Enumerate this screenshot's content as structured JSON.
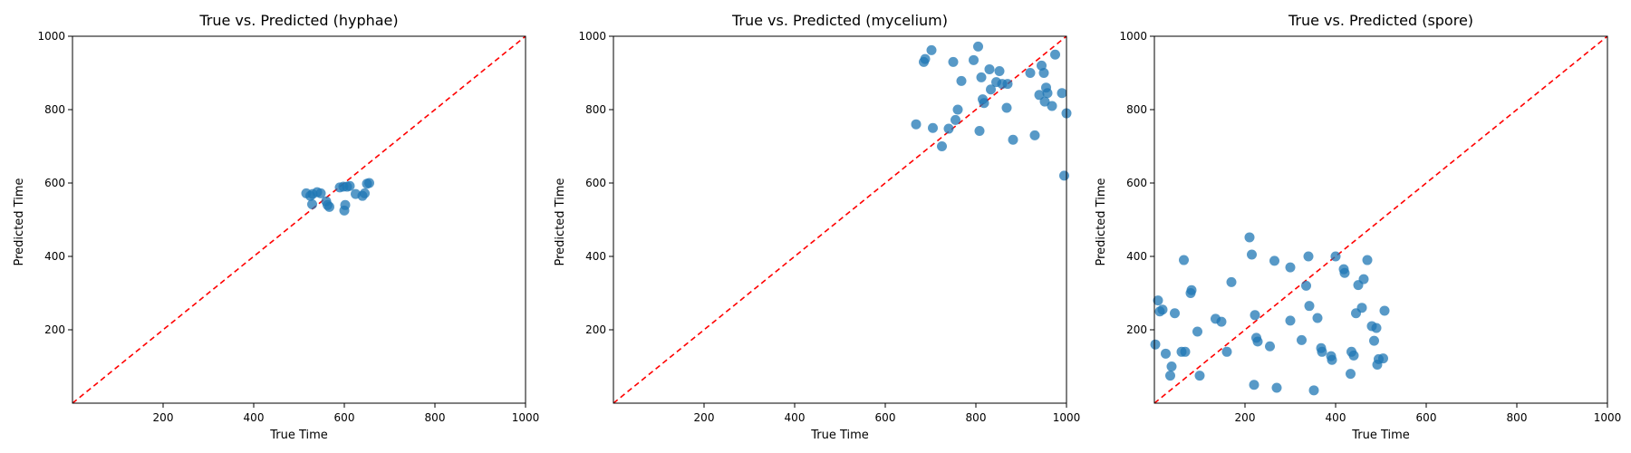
{
  "chart_data": [
    {
      "type": "scatter",
      "title": "True vs. Predicted (hyphae)",
      "xlabel": "True Time",
      "ylabel": "Predicted Time",
      "xlim": [
        0,
        1000
      ],
      "ylim": [
        0,
        1000
      ],
      "xticks": [
        200,
        400,
        600,
        800,
        1000
      ],
      "yticks": [
        200,
        400,
        600,
        800,
        1000
      ],
      "reference_line": {
        "style": "dashed",
        "color": "#ff0000",
        "from": [
          0,
          0
        ],
        "to": [
          1000,
          1000
        ]
      },
      "grid": false,
      "series": [
        {
          "color": "#1f77b4",
          "points": [
            [
              516,
              572
            ],
            [
              525,
              565
            ],
            [
              529,
              542
            ],
            [
              530,
              570
            ],
            [
              540,
              575
            ],
            [
              548,
              572
            ],
            [
              560,
              550
            ],
            [
              563,
              540
            ],
            [
              567,
              535
            ],
            [
              590,
              588
            ],
            [
              598,
              590
            ],
            [
              600,
              525
            ],
            [
              602,
              540
            ],
            [
              606,
              590
            ],
            [
              612,
              592
            ],
            [
              625,
              570
            ],
            [
              640,
              565
            ],
            [
              645,
              572
            ],
            [
              650,
              598
            ],
            [
              655,
              600
            ]
          ]
        }
      ]
    },
    {
      "type": "scatter",
      "title": "True vs. Predicted (mycelium)",
      "xlabel": "True Time",
      "ylabel": "Predicted Time",
      "xlim": [
        0,
        1000
      ],
      "ylim": [
        0,
        1000
      ],
      "xticks": [
        200,
        400,
        600,
        800,
        1000
      ],
      "yticks": [
        200,
        400,
        600,
        800,
        1000
      ],
      "reference_line": {
        "style": "dashed",
        "color": "#ff0000",
        "from": [
          0,
          0
        ],
        "to": [
          1000,
          1000
        ]
      },
      "grid": false,
      "series": [
        {
          "color": "#1f77b4",
          "points": [
            [
              668,
              760
            ],
            [
              685,
              930
            ],
            [
              688,
              938
            ],
            [
              702,
              962
            ],
            [
              705,
              750
            ],
            [
              725,
              700
            ],
            [
              740,
              748
            ],
            [
              750,
              930
            ],
            [
              755,
              772
            ],
            [
              760,
              800
            ],
            [
              768,
              878
            ],
            [
              795,
              935
            ],
            [
              805,
              972
            ],
            [
              808,
              742
            ],
            [
              812,
              888
            ],
            [
              815,
              828
            ],
            [
              818,
              818
            ],
            [
              830,
              910
            ],
            [
              833,
              855
            ],
            [
              845,
              875
            ],
            [
              852,
              905
            ],
            [
              858,
              870
            ],
            [
              868,
              805
            ],
            [
              870,
              870
            ],
            [
              882,
              718
            ],
            [
              920,
              900
            ],
            [
              930,
              730
            ],
            [
              940,
              840
            ],
            [
              945,
              920
            ],
            [
              950,
              900
            ],
            [
              955,
              860
            ],
            [
              952,
              822
            ],
            [
              958,
              845
            ],
            [
              968,
              810
            ],
            [
              975,
              950
            ],
            [
              990,
              845
            ],
            [
              995,
              620
            ],
            [
              1000,
              790
            ]
          ]
        }
      ]
    },
    {
      "type": "scatter",
      "title": "True vs. Predicted (spore)",
      "xlabel": "True Time",
      "ylabel": "Predicted Time",
      "xlim": [
        0,
        1000
      ],
      "ylim": [
        0,
        1000
      ],
      "xticks": [
        200,
        400,
        600,
        800,
        1000
      ],
      "yticks": [
        200,
        400,
        600,
        800,
        1000
      ],
      "reference_line": {
        "style": "dashed",
        "color": "#ff0000",
        "from": [
          0,
          0
        ],
        "to": [
          1000,
          1000
        ]
      },
      "grid": false,
      "series": [
        {
          "color": "#1f77b4",
          "points": [
            [
              2,
              160
            ],
            [
              8,
              280
            ],
            [
              12,
              250
            ],
            [
              18,
              255
            ],
            [
              25,
              135
            ],
            [
              35,
              75
            ],
            [
              38,
              100
            ],
            [
              45,
              245
            ],
            [
              60,
              140
            ],
            [
              65,
              390
            ],
            [
              68,
              140
            ],
            [
              80,
              300
            ],
            [
              82,
              308
            ],
            [
              95,
              195
            ],
            [
              100,
              75
            ],
            [
              135,
              230
            ],
            [
              148,
              222
            ],
            [
              160,
              140
            ],
            [
              170,
              330
            ],
            [
              210,
              452
            ],
            [
              215,
              405
            ],
            [
              220,
              50
            ],
            [
              222,
              240
            ],
            [
              225,
              178
            ],
            [
              228,
              168
            ],
            [
              255,
              155
            ],
            [
              265,
              388
            ],
            [
              270,
              42
            ],
            [
              300,
              370
            ],
            [
              300,
              225
            ],
            [
              325,
              172
            ],
            [
              335,
              320
            ],
            [
              340,
              400
            ],
            [
              342,
              265
            ],
            [
              352,
              35
            ],
            [
              360,
              232
            ],
            [
              368,
              150
            ],
            [
              370,
              140
            ],
            [
              390,
              128
            ],
            [
              392,
              118
            ],
            [
              400,
              400
            ],
            [
              418,
              365
            ],
            [
              420,
              355
            ],
            [
              433,
              80
            ],
            [
              435,
              140
            ],
            [
              440,
              130
            ],
            [
              445,
              245
            ],
            [
              450,
              322
            ],
            [
              458,
              260
            ],
            [
              462,
              338
            ],
            [
              470,
              390
            ],
            [
              480,
              210
            ],
            [
              485,
              170
            ],
            [
              490,
              205
            ],
            [
              492,
              105
            ],
            [
              495,
              120
            ],
            [
              505,
              122
            ],
            [
              508,
              252
            ]
          ]
        }
      ]
    }
  ]
}
